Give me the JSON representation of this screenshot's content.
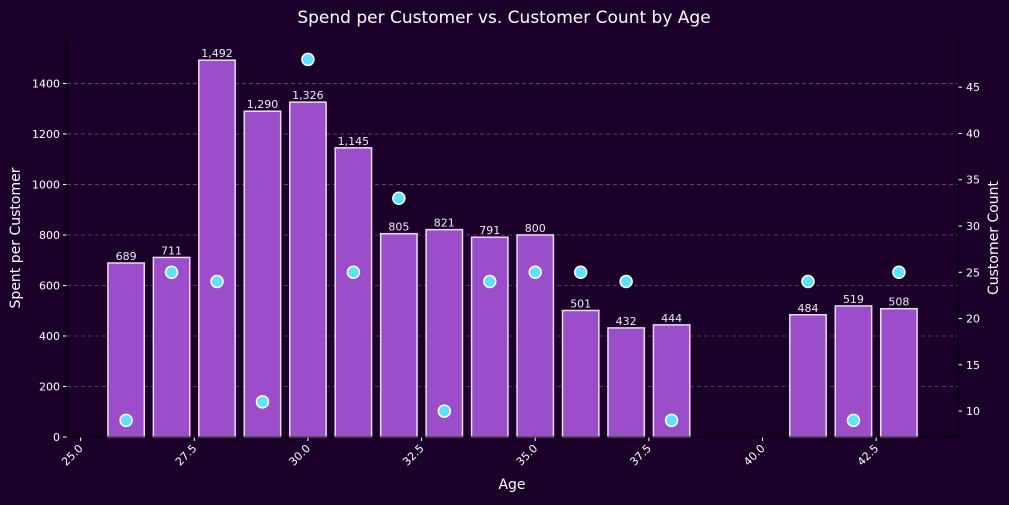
{
  "chart_data": {
    "type": "bar",
    "title": "Spend per Customer vs. Customer Count by Age",
    "xlabel": "Age",
    "ylabel": "Spent per Customer",
    "y2label": "Customer Count",
    "xlim": [
      24.7,
      44.3
    ],
    "ylim": [
      0,
      1572
    ],
    "y2lim": [
      7.2,
      50.1
    ],
    "xticks": [
      "25.0",
      "27.5",
      "30.0",
      "32.5",
      "35.0",
      "37.5",
      "40.0",
      "42.5"
    ],
    "yticks": [
      "0",
      "200",
      "400",
      "600",
      "800",
      "1000",
      "1200",
      "1400"
    ],
    "y2ticks": [
      "10",
      "15",
      "20",
      "25",
      "30",
      "35",
      "40",
      "45"
    ],
    "grid": "horizontal dashed",
    "bars": {
      "x": [
        26,
        27,
        28,
        29,
        30,
        31,
        32,
        33,
        34,
        35,
        36,
        37,
        38,
        41,
        42,
        43
      ],
      "values": [
        689,
        711,
        1492,
        1290,
        1326,
        1145,
        805,
        821,
        791,
        800,
        501,
        432,
        444,
        484,
        519,
        508
      ],
      "labels": [
        "689",
        "711",
        "1,492",
        "1,290",
        "1,326",
        "1,145",
        "805",
        "821",
        "791",
        "800",
        "501",
        "432",
        "444",
        "484",
        "519",
        "508"
      ],
      "color": "#9b4dca"
    },
    "scatter": {
      "x": [
        26,
        27,
        28,
        29,
        30,
        31,
        32,
        33,
        34,
        35,
        36,
        37,
        38,
        41,
        42,
        43
      ],
      "values": [
        9,
        25,
        24,
        11,
        48,
        25,
        33,
        10,
        24,
        25,
        25,
        24,
        9,
        24,
        9,
        25
      ],
      "color": "#5ce1ff"
    }
  }
}
